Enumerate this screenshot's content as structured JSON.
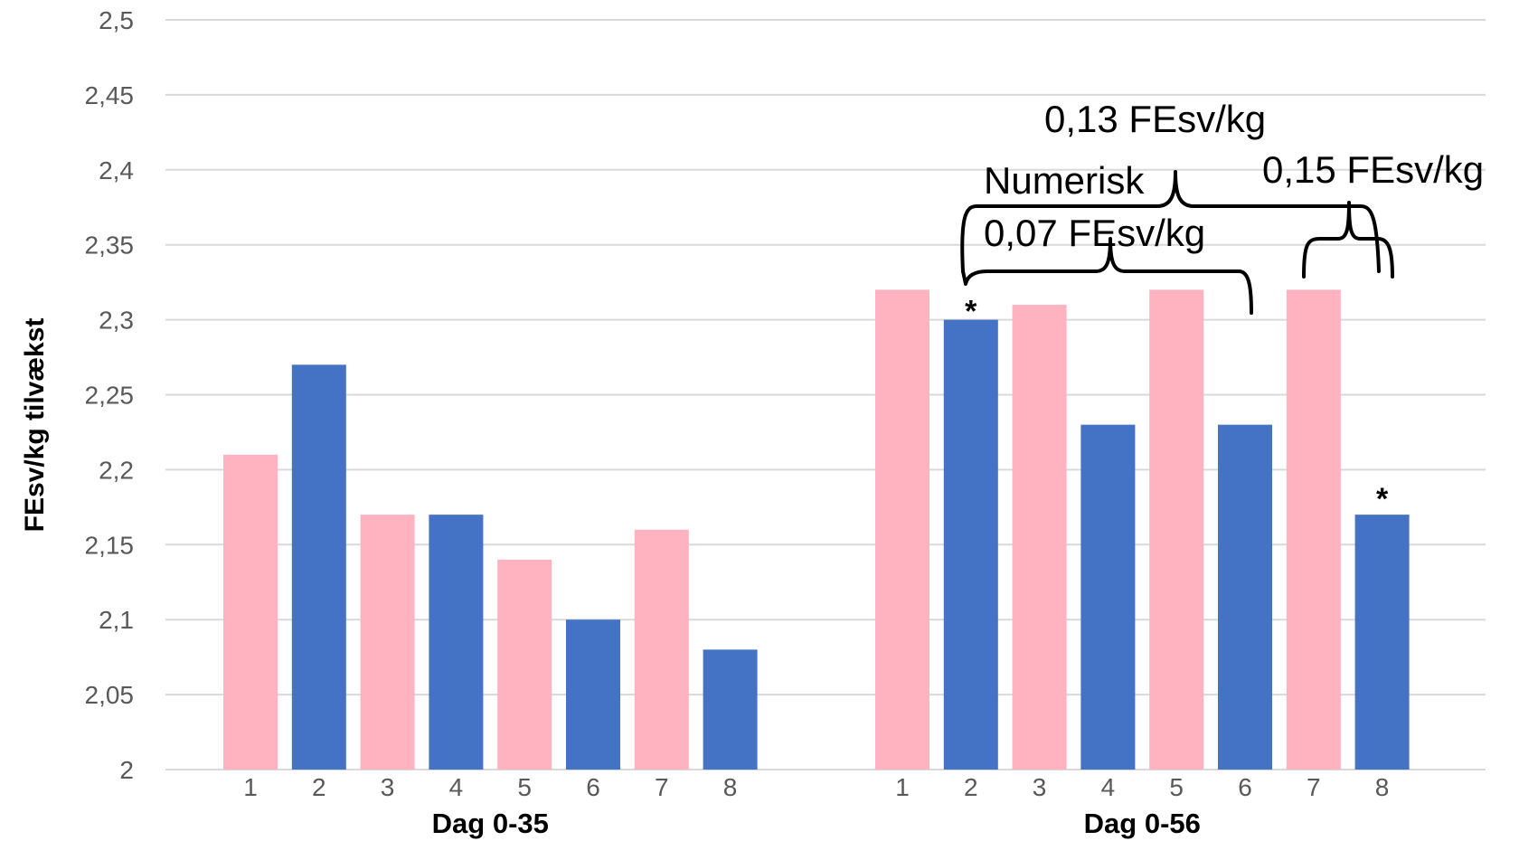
{
  "chart_data": {
    "type": "bar",
    "ylabel": "FEsv/kg tilvækst",
    "ylim": [
      2,
      2.5
    ],
    "yticks": [
      2,
      2.05,
      2.1,
      2.15,
      2.2,
      2.25,
      2.3,
      2.35,
      2.4,
      2.45,
      2.5
    ],
    "ytick_labels": [
      "2",
      "2,05",
      "2,1",
      "2,15",
      "2,2",
      "2,25",
      "2,3",
      "2,35",
      "2,4",
      "2,45",
      "2,5"
    ],
    "grid": true,
    "colors": {
      "odd": "#ffb3c1",
      "even": "#4472c4"
    },
    "groups": [
      {
        "label": "Dag 0-35",
        "categories": [
          "1",
          "2",
          "3",
          "4",
          "5",
          "6",
          "7",
          "8"
        ],
        "values": [
          2.21,
          2.27,
          2.17,
          2.17,
          2.14,
          2.1,
          2.16,
          2.08
        ]
      },
      {
        "label": "Dag 0-56",
        "categories": [
          "1",
          "2",
          "3",
          "4",
          "5",
          "6",
          "7",
          "8"
        ],
        "values": [
          2.32,
          2.3,
          2.31,
          2.23,
          2.32,
          2.23,
          2.32,
          2.17
        ]
      }
    ],
    "annotations": [
      {
        "text": "0,13 FEsv/kg"
      },
      {
        "text": "Numerisk"
      },
      {
        "text": "0,07 FEsv/kg"
      },
      {
        "text": "0,15 FEsv/kg"
      }
    ],
    "significance_markers": [
      {
        "group": 1,
        "bar": 2,
        "text": "*"
      },
      {
        "group": 1,
        "bar": 8,
        "text": "*"
      }
    ]
  }
}
